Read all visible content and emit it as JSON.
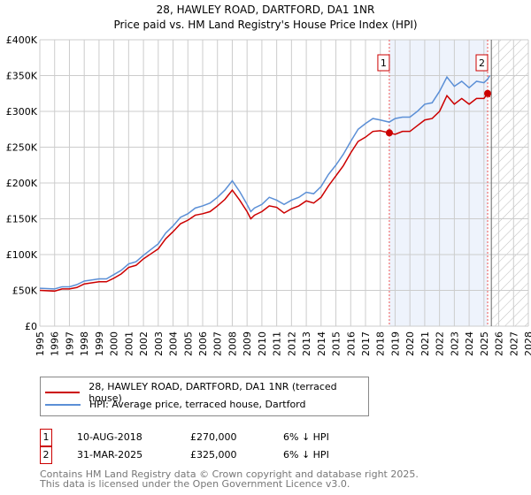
{
  "chart_data": {
    "type": "line",
    "title": "28, HAWLEY ROAD, DARTFORD, DA1 1NR",
    "subtitle": "Price paid vs. HM Land Registry's House Price Index (HPI)",
    "xlim": [
      1995,
      2028
    ],
    "ylim": [
      0,
      400000
    ],
    "x_ticks": [
      "1995",
      "1996",
      "1997",
      "1998",
      "1999",
      "2000",
      "2001",
      "2002",
      "2003",
      "2004",
      "2005",
      "2006",
      "2007",
      "2008",
      "2009",
      "2010",
      "2011",
      "2012",
      "2013",
      "2014",
      "2015",
      "2016",
      "2017",
      "2018",
      "2019",
      "2020",
      "2021",
      "2022",
      "2023",
      "2024",
      "2025",
      "2026",
      "2027",
      "2028"
    ],
    "y_ticks": [
      "£0",
      "£50K",
      "£100K",
      "£150K",
      "£200K",
      "£250K",
      "£300K",
      "£350K",
      "£400K"
    ],
    "grid": true,
    "series": [
      {
        "name": "28, HAWLEY ROAD, DARTFORD, DA1 1NR (terraced house)",
        "color": "#cc0000",
        "x": [
          1995,
          1996,
          1996.5,
          1997,
          1997.5,
          1998,
          1999,
          1999.5,
          2000,
          2000.5,
          2001,
          2001.5,
          2002,
          2002.5,
          2003,
          2003.5,
          2004,
          2004.5,
          2005,
          2005.5,
          2006,
          2006.5,
          2007,
          2007.5,
          2008,
          2008.5,
          2009,
          2009.25,
          2009.5,
          2010,
          2010.5,
          2011,
          2011.5,
          2012,
          2012.5,
          2013,
          2013.5,
          2014,
          2014.5,
          2015,
          2015.5,
          2016,
          2016.5,
          2017,
          2017.5,
          2018,
          2018.6,
          2019,
          2019.5,
          2020,
          2020.5,
          2021,
          2021.5,
          2022,
          2022.5,
          2023,
          2023.5,
          2024,
          2024.5,
          2025,
          2025.25,
          2025.4
        ],
        "y": [
          50000,
          49000,
          52000,
          52000,
          54000,
          59000,
          62000,
          62000,
          67000,
          73000,
          82000,
          85000,
          94000,
          101000,
          108000,
          122000,
          132000,
          143000,
          148000,
          155000,
          157000,
          160000,
          168000,
          177000,
          190000,
          176000,
          160000,
          150000,
          155000,
          160000,
          168000,
          166000,
          158000,
          164000,
          168000,
          175000,
          172000,
          180000,
          196000,
          210000,
          224000,
          242000,
          258000,
          264000,
          272000,
          273000,
          270000,
          268000,
          272000,
          272000,
          280000,
          288000,
          290000,
          300000,
          322000,
          310000,
          318000,
          310000,
          318000,
          318000,
          325000,
          320000
        ]
      },
      {
        "name": "HPI: Average price, terraced house, Dartford",
        "color": "#5b8fd6",
        "x": [
          1995,
          1996,
          1996.5,
          1997,
          1997.5,
          1998,
          1999,
          1999.5,
          2000,
          2000.5,
          2001,
          2001.5,
          2002,
          2002.5,
          2003,
          2003.5,
          2004,
          2004.5,
          2005,
          2005.5,
          2006,
          2006.5,
          2007,
          2007.5,
          2008,
          2008.5,
          2009,
          2009.25,
          2009.5,
          2010,
          2010.5,
          2011,
          2011.5,
          2012,
          2012.5,
          2013,
          2013.5,
          2014,
          2014.5,
          2015,
          2015.5,
          2016,
          2016.5,
          2017,
          2017.5,
          2018,
          2018.6,
          2019,
          2019.5,
          2020,
          2020.5,
          2021,
          2021.5,
          2022,
          2022.5,
          2023,
          2023.5,
          2024,
          2024.5,
          2025,
          2025.25,
          2025.4
        ],
        "y": [
          53000,
          52000,
          55000,
          55000,
          58000,
          63000,
          66000,
          66000,
          72000,
          78000,
          87000,
          90000,
          99000,
          107000,
          115000,
          130000,
          140000,
          152000,
          157000,
          165000,
          168000,
          172000,
          180000,
          190000,
          203000,
          188000,
          170000,
          160000,
          165000,
          170000,
          180000,
          176000,
          170000,
          176000,
          180000,
          187000,
          185000,
          195000,
          212000,
          225000,
          240000,
          258000,
          275000,
          283000,
          290000,
          288000,
          285000,
          290000,
          292000,
          292000,
          300000,
          310000,
          312000,
          328000,
          348000,
          335000,
          342000,
          333000,
          342000,
          340000,
          345000,
          350000
        ]
      }
    ],
    "annotations": [
      {
        "label": "1",
        "x": 2018.61,
        "y": 270000
      },
      {
        "label": "2",
        "x": 2025.25,
        "y": 325000
      }
    ],
    "shaded_range": [
      2018.61,
      2025.25
    ],
    "forecast_from": 2025.5
  },
  "legend": {
    "items": [
      "28, HAWLEY ROAD, DARTFORD, DA1 1NR (terraced house)",
      "HPI: Average price, terraced house, Dartford"
    ]
  },
  "transactions": [
    {
      "num": "1",
      "date": "10-AUG-2018",
      "price": "£270,000",
      "diff": "6% ↓ HPI"
    },
    {
      "num": "2",
      "date": "31-MAR-2025",
      "price": "£325,000",
      "diff": "6% ↓ HPI"
    }
  ],
  "footer": {
    "line1": "Contains HM Land Registry data © Crown copyright and database right 2025.",
    "line2": "This data is licensed under the Open Government Licence v3.0."
  }
}
